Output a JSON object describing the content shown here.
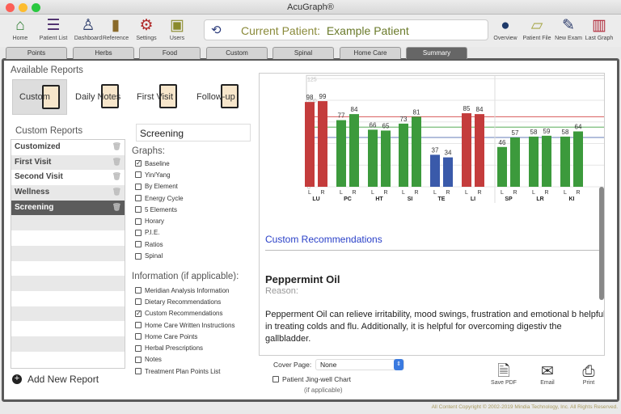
{
  "window": {
    "title": "AcuGraph®"
  },
  "toolbar": {
    "left": [
      {
        "label": "Home",
        "icon": "home-icon",
        "color": "#2e7d32",
        "glyph": "⌂"
      },
      {
        "label": "Patient List",
        "icon": "list-icon",
        "color": "#4a2a6a",
        "glyph": "☰"
      },
      {
        "label": "Dashboard",
        "icon": "person-pin-icon",
        "color": "#2a3a6a",
        "glyph": "♙"
      },
      {
        "label": "Reference",
        "icon": "book-icon",
        "color": "#8a6a2a",
        "glyph": "▮"
      },
      {
        "label": "Settings",
        "icon": "gears-icon",
        "color": "#b02a2a",
        "glyph": "⚙"
      },
      {
        "label": "Users",
        "icon": "briefcase-icon",
        "color": "#8a8a2a",
        "glyph": "▣"
      }
    ],
    "right": [
      {
        "label": "Overview",
        "icon": "user-icon",
        "color": "#1e3a6a",
        "glyph": "●"
      },
      {
        "label": "Patient File",
        "icon": "folder-icon",
        "color": "#a8a84a",
        "glyph": "▱"
      },
      {
        "label": "New Exam",
        "icon": "probe-icon",
        "color": "#2a3a6a",
        "glyph": "✎"
      },
      {
        "label": "Last Graph",
        "icon": "bar-chart-icon",
        "color": "#b02a3a",
        "glyph": "▥"
      }
    ],
    "current_patient_label": "Current Patient:",
    "current_patient": "Example Patient"
  },
  "tabs": [
    "Points",
    "Herbs",
    "Food",
    "Custom",
    "Spinal",
    "Home Care",
    "Summary"
  ],
  "active_tab": "Summary",
  "available_reports": {
    "title": "Available Reports",
    "items": [
      "Custom",
      "Daily Notes",
      "First Visit",
      "Follow-up"
    ],
    "selected": "Custom"
  },
  "custom_reports": {
    "title": "Custom Reports",
    "items": [
      "Customized",
      "First Visit",
      "Second Visit",
      "Wellness",
      "Screening"
    ],
    "selected": "Screening",
    "add_label": "Add New Report"
  },
  "report_name": "Screening",
  "graphs": {
    "title": "Graphs:",
    "items": [
      {
        "label": "Baseline",
        "checked": true
      },
      {
        "label": "Yin/Yang",
        "checked": false
      },
      {
        "label": "By Element",
        "checked": false
      },
      {
        "label": "Energy Cycle",
        "checked": false
      },
      {
        "label": "5 Elements",
        "checked": false
      },
      {
        "label": "Horary",
        "checked": false
      },
      {
        "label": "P.I.E.",
        "checked": false
      },
      {
        "label": "Ratios",
        "checked": false
      },
      {
        "label": "Spinal",
        "checked": false
      }
    ]
  },
  "information": {
    "title": "Information (if applicable):",
    "items": [
      {
        "label": "Meridian Analysis Information",
        "checked": false
      },
      {
        "label": "Dietary Recommendations",
        "checked": false
      },
      {
        "label": "Custom Recommendations",
        "checked": true
      },
      {
        "label": "Home Care Written Instructions",
        "checked": false
      },
      {
        "label": "Home Care Points",
        "checked": false
      },
      {
        "label": "Herbal Prescriptions",
        "checked": false
      },
      {
        "label": "Notes",
        "checked": false
      },
      {
        "label": "Treatment Plan Points List",
        "checked": false
      }
    ]
  },
  "chart_data": {
    "type": "bar",
    "categories": [
      "LU",
      "PC",
      "HT",
      "SI",
      "TE",
      "LI",
      "SP",
      "LR",
      "KI"
    ],
    "sub_labels": [
      "L",
      "R"
    ],
    "series": [
      {
        "name": "L",
        "values": [
          98,
          77,
          66,
          73,
          37,
          85,
          46,
          58,
          58
        ]
      },
      {
        "name": "R",
        "values": [
          99,
          84,
          65,
          81,
          34,
          84,
          57,
          59,
          64
        ]
      }
    ],
    "bar_colors": [
      [
        "#c43c3c",
        "#c43c3c"
      ],
      [
        "#3c9a3c",
        "#3c9a3c"
      ],
      [
        "#3c9a3c",
        "#3c9a3c"
      ],
      [
        "#3c9a3c",
        "#3c9a3c"
      ],
      [
        "#3a5aaa",
        "#3a5aaa"
      ],
      [
        "#c43c3c",
        "#c43c3c"
      ],
      [
        "#3c9a3c",
        "#3c9a3c"
      ],
      [
        "#3c9a3c",
        "#3c9a3c"
      ],
      [
        "#3c9a3c",
        "#3c9a3c"
      ]
    ],
    "yticks": [
      0,
      25,
      100,
      125
    ],
    "ylim": [
      0,
      125
    ],
    "reference_lines": [
      {
        "value": 81,
        "color": "#d04040"
      },
      {
        "value": 69,
        "color": "#40a040"
      },
      {
        "value": 57,
        "color": "#3050a0"
      }
    ],
    "grid": true
  },
  "preview": {
    "section_title": "Custom Recommendations",
    "item_title": "Peppermint Oil",
    "reason_label": "Reason:",
    "body": "Pepperment Oil can relieve irritability, mood swings, frustration and emotional b helpful in treating colds and flu. Additionally, it is helpful for overcoming digestiv the gallbladder."
  },
  "cover_page": {
    "label": "Cover Page:",
    "value": "None"
  },
  "jingwell": {
    "label": "Patient Jing-well Chart",
    "note": "(if applicable)",
    "checked": false
  },
  "actions": [
    {
      "label": "Save PDF",
      "icon": "document-icon",
      "glyph": "🗎"
    },
    {
      "label": "Email",
      "icon": "envelope-icon",
      "glyph": "✉"
    },
    {
      "label": "Print",
      "icon": "printer-icon",
      "glyph": "⎙"
    }
  ],
  "footer": "All Content Copyright © 2002-2019 Mindia Technology, Inc.  All Rights Reserved."
}
